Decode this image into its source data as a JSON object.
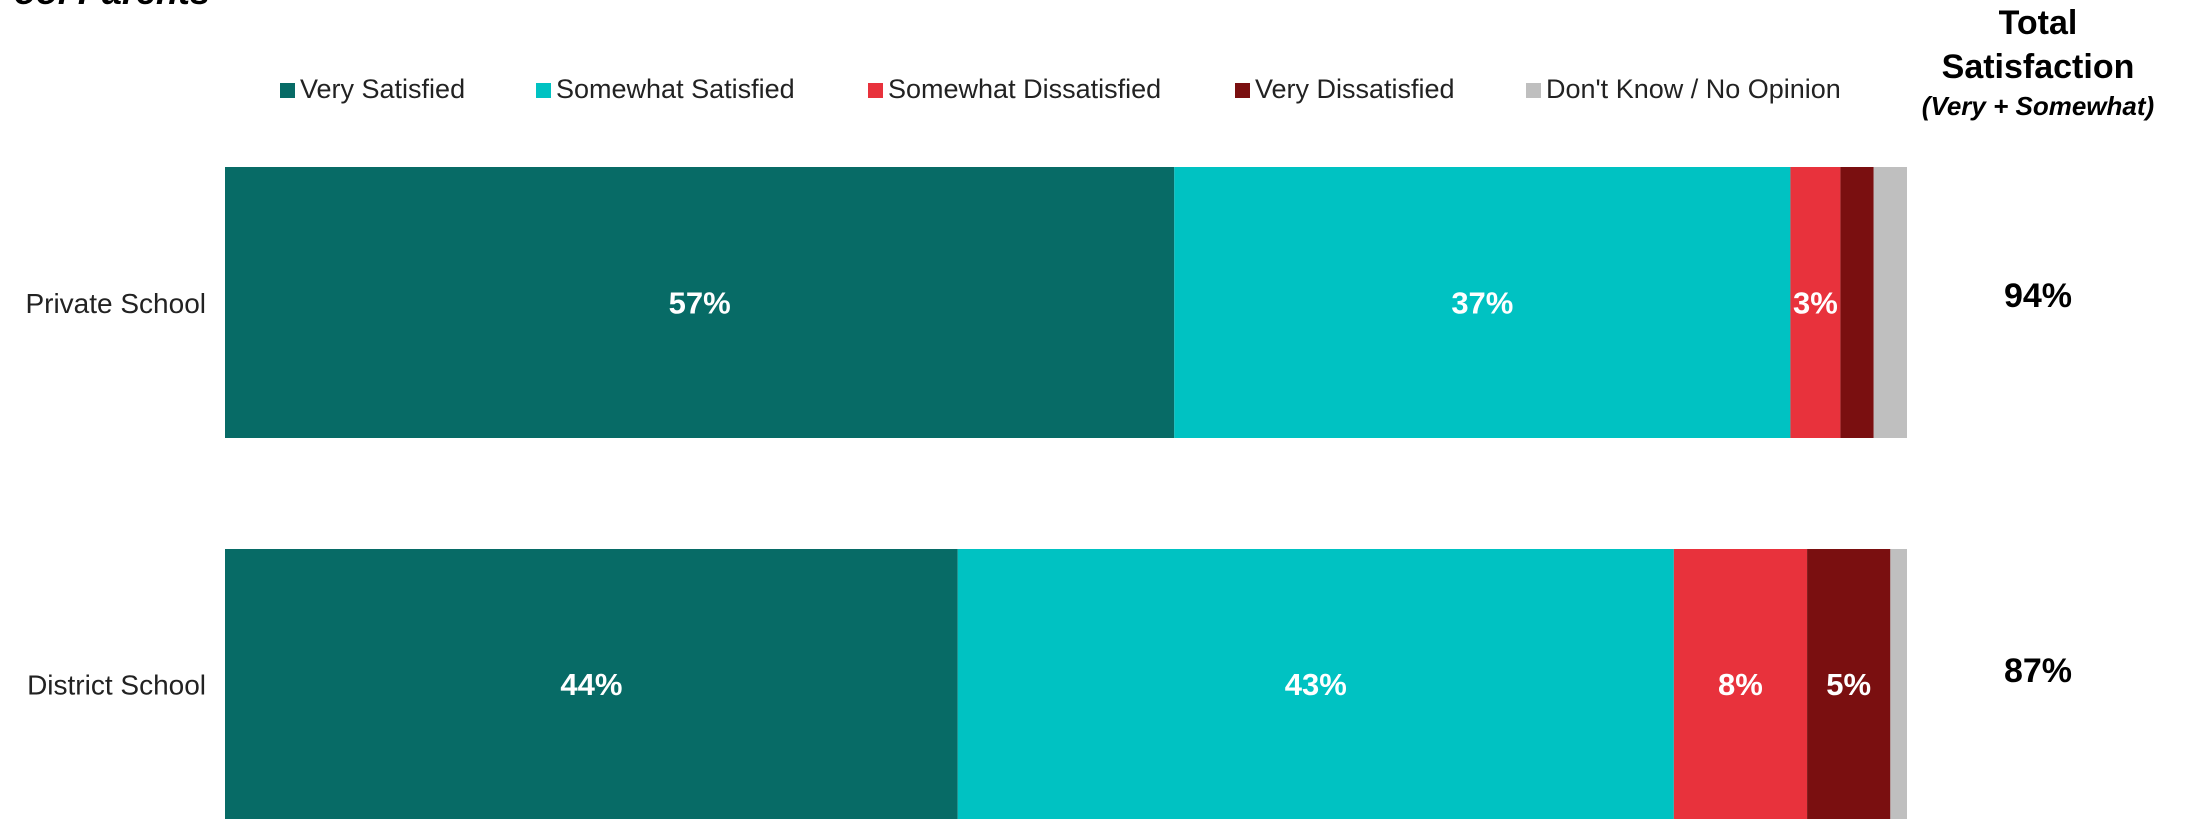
{
  "chart_data": {
    "type": "stacked-bar-horizontal",
    "title": "ool Parents",
    "categories": [
      "Private School",
      "District School"
    ],
    "xlim": [
      0,
      101
    ],
    "legend": "top",
    "series": [
      {
        "name": "Very Satisfied",
        "color": "#076b66",
        "values": [
          57,
          44
        ],
        "value_labels": [
          "57%",
          "44%"
        ]
      },
      {
        "name": "Somewhat Satisfied",
        "color": "#00c2c2",
        "values": [
          37,
          43
        ],
        "value_labels": [
          "37%",
          "43%"
        ]
      },
      {
        "name": "Somewhat Dissatisfied",
        "color": "#e8323c",
        "values": [
          3,
          8
        ],
        "value_labels": [
          "3%",
          "8%"
        ]
      },
      {
        "name": "Very Dissatisfied",
        "color": "#7a0f10",
        "values": [
          2,
          5
        ],
        "value_labels": [
          null,
          "5%"
        ]
      },
      {
        "name": "Don't Know / No Opinion",
        "color": "#bfbfbf",
        "values": [
          2,
          1
        ],
        "value_labels": [
          null,
          null
        ]
      }
    ],
    "total": {
      "title": [
        "Total",
        "Satisfaction"
      ],
      "subtitle": "(Very + Somewhat)",
      "values": [
        94,
        87
      ],
      "value_labels": [
        "94%",
        "87%"
      ]
    }
  }
}
